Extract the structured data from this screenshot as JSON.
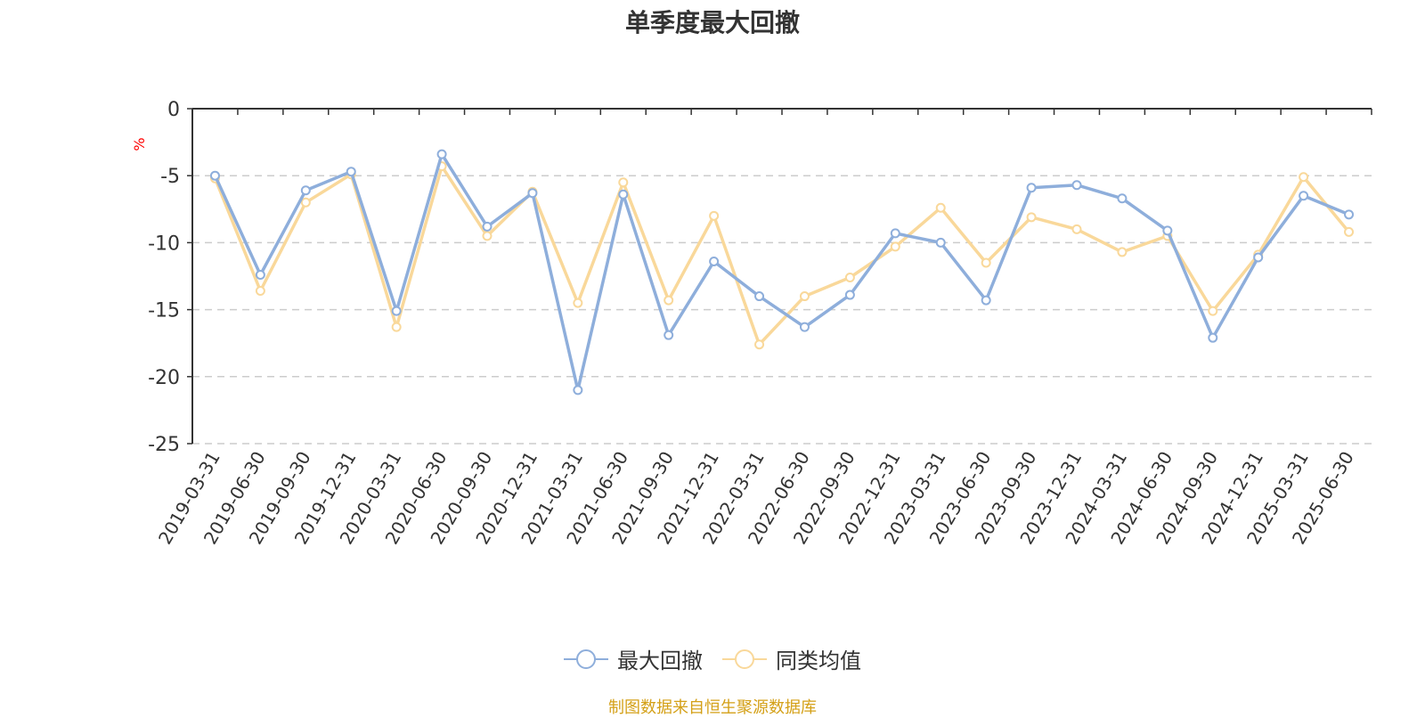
{
  "title": "单季度最大回撤",
  "source": "制图数据来自恒生聚源数据库",
  "colors": {
    "series1": "#8eaedb",
    "series2": "#f9d89a",
    "axis": "#333333",
    "grid": "#cccccc",
    "unit": "#ff0000",
    "source": "#d4a017"
  },
  "chart_data": {
    "type": "line",
    "title": "单季度最大回撤",
    "ylabel": "%",
    "ylim": [
      -25,
      0
    ],
    "yticks": [
      0,
      -5,
      -10,
      -15,
      -20,
      -25
    ],
    "grid": true,
    "legend_position": "bottom-center",
    "categories": [
      "2019-03-31",
      "2019-06-30",
      "2019-09-30",
      "2019-12-31",
      "2020-03-31",
      "2020-06-30",
      "2020-09-30",
      "2020-12-31",
      "2021-03-31",
      "2021-06-30",
      "2021-09-30",
      "2021-12-31",
      "2022-03-31",
      "2022-06-30",
      "2022-09-30",
      "2022-12-31",
      "2023-03-31",
      "2023-06-30",
      "2023-09-30",
      "2023-12-31",
      "2024-03-31",
      "2024-06-30",
      "2024-09-30",
      "2024-12-31",
      "2025-03-31",
      "2025-06-30"
    ],
    "series": [
      {
        "name": "最大回撤",
        "values": [
          -5.0,
          -12.4,
          -6.1,
          -4.7,
          -15.1,
          -3.4,
          -8.8,
          -6.3,
          -21.0,
          -6.4,
          -16.9,
          -11.4,
          -14.0,
          -16.3,
          -13.9,
          -9.3,
          -10.0,
          -14.3,
          -5.9,
          -5.7,
          -6.7,
          -9.1,
          -17.1,
          -11.1,
          -6.5,
          -7.9
        ]
      },
      {
        "name": "同类均值",
        "values": [
          -5.2,
          -13.6,
          -7.0,
          -4.9,
          -16.3,
          -4.3,
          -9.5,
          -6.2,
          -14.5,
          -5.5,
          -14.3,
          -8.0,
          -17.6,
          -14.0,
          -12.6,
          -10.3,
          -7.4,
          -11.5,
          -8.1,
          -9.0,
          -10.7,
          -9.5,
          -15.1,
          -10.9,
          -5.1,
          -9.2
        ]
      }
    ]
  }
}
